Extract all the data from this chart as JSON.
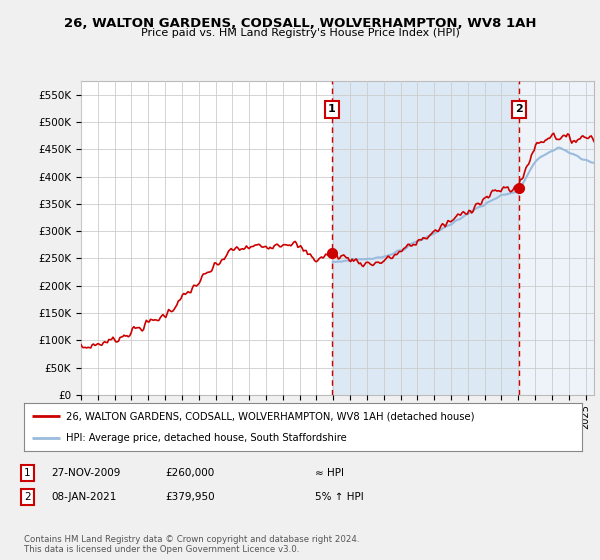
{
  "title": "26, WALTON GARDENS, CODSALL, WOLVERHAMPTON, WV8 1AH",
  "subtitle": "Price paid vs. HM Land Registry's House Price Index (HPI)",
  "bg_color": "#f0f0f0",
  "plot_bg_color": "#ffffff",
  "shaded_bg_color": "#dce9f5",
  "grid_color": "#cccccc",
  "red_color": "#cc0000",
  "blue_color": "#99bbdd",
  "ylim": [
    0,
    575000
  ],
  "yticks": [
    0,
    50000,
    100000,
    150000,
    200000,
    250000,
    300000,
    350000,
    400000,
    450000,
    500000,
    550000
  ],
  "ytick_labels": [
    "£0",
    "£50K",
    "£100K",
    "£150K",
    "£200K",
    "£250K",
    "£300K",
    "£350K",
    "£400K",
    "£450K",
    "£500K",
    "£550K"
  ],
  "sale1_year": 2009.92,
  "sale1_price": 260000,
  "sale2_year": 2021.03,
  "sale2_price": 379950,
  "legend_red": "26, WALTON GARDENS, CODSALL, WOLVERHAMPTON, WV8 1AH (detached house)",
  "legend_blue": "HPI: Average price, detached house, South Staffordshire",
  "footnote": "Contains HM Land Registry data © Crown copyright and database right 2024.\nThis data is licensed under the Open Government Licence v3.0.",
  "xmin": 1995,
  "xmax": 2025.5
}
